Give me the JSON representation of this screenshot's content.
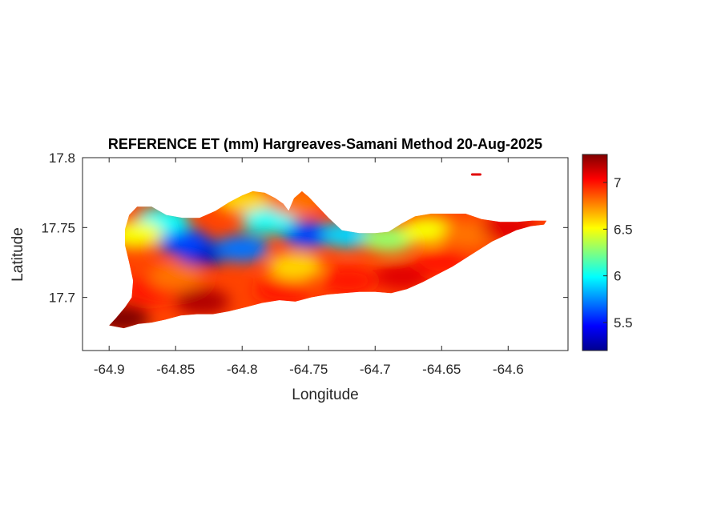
{
  "chart_data": {
    "type": "heatmap",
    "title": "REFERENCE ET (mm) Hargreaves-Samani Method  20-Aug-2025",
    "xlabel": "Longitude",
    "ylabel": "Latitude",
    "xlim": [
      -64.92,
      -64.555
    ],
    "ylim": [
      17.662,
      17.8
    ],
    "xticks": [
      -64.9,
      -64.85,
      -64.8,
      -64.75,
      -64.7,
      -64.65,
      -64.6
    ],
    "xtick_labels": [
      "-64.9",
      "-64.85",
      "-64.8",
      "-64.75",
      "-64.7",
      "-64.65",
      "-64.6"
    ],
    "yticks": [
      17.7,
      17.75,
      17.8
    ],
    "ytick_labels": [
      "17.7",
      "17.75",
      "17.8"
    ],
    "colorbar": {
      "colormap": "jet",
      "range": [
        5.2,
        7.3
      ],
      "ticks": [
        5.5,
        6,
        6.5,
        7
      ],
      "tick_labels": [
        "5.5",
        "6",
        "6.5",
        "7"
      ]
    },
    "grid": false,
    "colors": {
      "axis": "#262626",
      "background": "#ffffff"
    },
    "region_outline": [
      [
        -64.9,
        17.68
      ],
      [
        -64.895,
        17.685
      ],
      [
        -64.888,
        17.693
      ],
      [
        -64.883,
        17.7
      ],
      [
        -64.882,
        17.712
      ],
      [
        -64.885,
        17.725
      ],
      [
        -64.888,
        17.737
      ],
      [
        -64.888,
        17.749
      ],
      [
        -64.885,
        17.759
      ],
      [
        -64.879,
        17.765
      ],
      [
        -64.868,
        17.765
      ],
      [
        -64.857,
        17.759
      ],
      [
        -64.845,
        17.757
      ],
      [
        -64.832,
        17.757
      ],
      [
        -64.82,
        17.762
      ],
      [
        -64.81,
        17.768
      ],
      [
        -64.8,
        17.773
      ],
      [
        -64.792,
        17.776
      ],
      [
        -64.783,
        17.775
      ],
      [
        -64.775,
        17.771
      ],
      [
        -64.769,
        17.767
      ],
      [
        -64.765,
        17.762
      ],
      [
        -64.761,
        17.771
      ],
      [
        -64.755,
        17.776
      ],
      [
        -64.75,
        17.772
      ],
      [
        -64.744,
        17.766
      ],
      [
        -64.735,
        17.757
      ],
      [
        -64.725,
        17.748
      ],
      [
        -64.712,
        17.746
      ],
      [
        -64.7,
        17.746
      ],
      [
        -64.69,
        17.747
      ],
      [
        -64.68,
        17.753
      ],
      [
        -64.67,
        17.758
      ],
      [
        -64.658,
        17.76
      ],
      [
        -64.645,
        17.76
      ],
      [
        -64.632,
        17.76
      ],
      [
        -64.62,
        17.756
      ],
      [
        -64.606,
        17.754
      ],
      [
        -64.593,
        17.754
      ],
      [
        -64.582,
        17.755
      ],
      [
        -64.571,
        17.755
      ],
      [
        -64.573,
        17.752
      ],
      [
        -64.583,
        17.751
      ],
      [
        -64.594,
        17.748
      ],
      [
        -64.603,
        17.744
      ],
      [
        -64.612,
        17.74
      ],
      [
        -64.622,
        17.734
      ],
      [
        -64.632,
        17.728
      ],
      [
        -64.642,
        17.722
      ],
      [
        -64.652,
        17.717
      ],
      [
        -64.664,
        17.711
      ],
      [
        -64.676,
        17.706
      ],
      [
        -64.688,
        17.703
      ],
      [
        -64.7,
        17.704
      ],
      [
        -64.712,
        17.704
      ],
      [
        -64.724,
        17.703
      ],
      [
        -64.736,
        17.702
      ],
      [
        -64.748,
        17.7
      ],
      [
        -64.76,
        17.697
      ],
      [
        -64.772,
        17.698
      ],
      [
        -64.785,
        17.696
      ],
      [
        -64.797,
        17.693
      ],
      [
        -64.81,
        17.69
      ],
      [
        -64.822,
        17.688
      ],
      [
        -64.834,
        17.688
      ],
      [
        -64.846,
        17.687
      ],
      [
        -64.858,
        17.684
      ],
      [
        -64.868,
        17.682
      ],
      [
        -64.878,
        17.681
      ],
      [
        -64.889,
        17.678
      ],
      [
        -64.9,
        17.68
      ]
    ],
    "islet": [
      [
        -64.627,
        17.788
      ],
      [
        -64.621,
        17.788
      ]
    ],
    "value_samples": [
      {
        "x": -64.83,
        "y": 17.732,
        "value": 5.3
      },
      {
        "x": -64.845,
        "y": 17.74,
        "value": 5.6
      },
      {
        "x": -64.8,
        "y": 17.735,
        "value": 5.7
      },
      {
        "x": -64.75,
        "y": 17.745,
        "value": 5.6
      },
      {
        "x": -64.72,
        "y": 17.745,
        "value": 5.9
      },
      {
        "x": -64.78,
        "y": 17.755,
        "value": 6.0
      },
      {
        "x": -64.86,
        "y": 17.755,
        "value": 6.0
      },
      {
        "x": -64.69,
        "y": 17.742,
        "value": 6.3
      },
      {
        "x": -64.66,
        "y": 17.748,
        "value": 6.5
      },
      {
        "x": -64.63,
        "y": 17.745,
        "value": 6.8
      },
      {
        "x": -64.6,
        "y": 17.75,
        "value": 7.1
      },
      {
        "x": -64.76,
        "y": 17.768,
        "value": 6.8
      },
      {
        "x": -64.8,
        "y": 17.77,
        "value": 6.6
      },
      {
        "x": -64.88,
        "y": 17.745,
        "value": 6.5
      },
      {
        "x": -64.87,
        "y": 17.705,
        "value": 7.0
      },
      {
        "x": -64.83,
        "y": 17.697,
        "value": 7.2
      },
      {
        "x": -64.77,
        "y": 17.705,
        "value": 7.0
      },
      {
        "x": -64.72,
        "y": 17.712,
        "value": 7.0
      },
      {
        "x": -64.68,
        "y": 17.715,
        "value": 7.1
      },
      {
        "x": -64.65,
        "y": 17.725,
        "value": 7.0
      },
      {
        "x": -64.89,
        "y": 17.685,
        "value": 7.3
      },
      {
        "x": -64.85,
        "y": 17.715,
        "value": 6.8
      },
      {
        "x": -64.76,
        "y": 17.722,
        "value": 6.6
      }
    ]
  }
}
